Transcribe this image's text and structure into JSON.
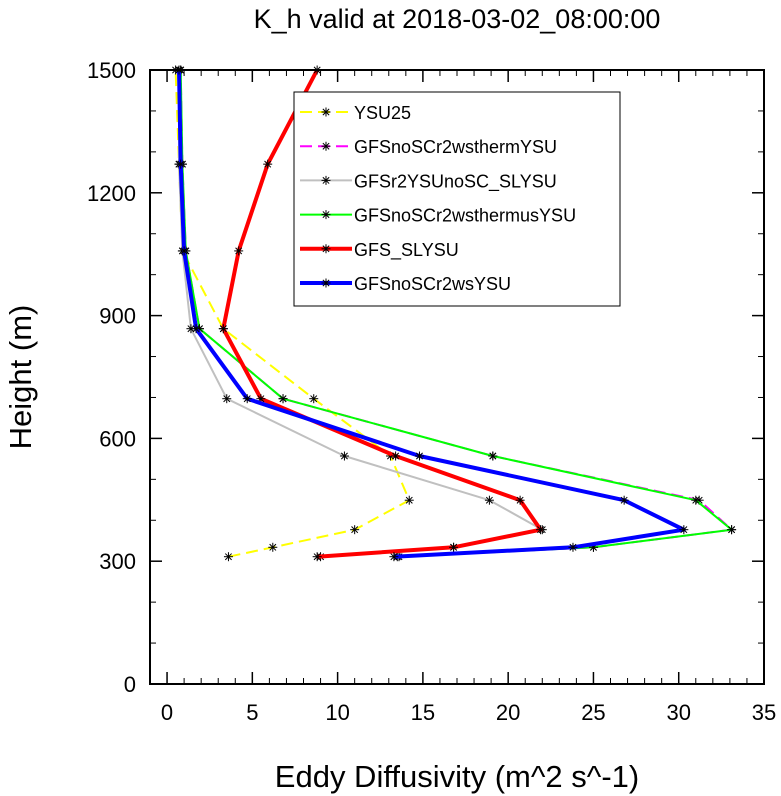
{
  "chart_data": {
    "type": "line",
    "title": "K_h valid at 2018-03-02_08:00:00",
    "xlabel": "Eddy Diffusivity (m^2 s^-1)",
    "ylabel": "Height (m)",
    "xlim": [
      -1,
      35
    ],
    "ylim": [
      0,
      1500
    ],
    "xticks": [
      0,
      5,
      10,
      15,
      20,
      25,
      30,
      35
    ],
    "yticks": [
      0,
      300,
      600,
      900,
      1200,
      1500
    ],
    "xtick_labels": [
      "0",
      "5",
      "10",
      "15",
      "20",
      "25",
      "30",
      "35"
    ],
    "ytick_labels": [
      "0",
      "300",
      "600",
      "900",
      "1200",
      "1500"
    ],
    "grid": false,
    "legend_position": "upper-right",
    "series": [
      {
        "name": "YSU25",
        "color": "#ffff00",
        "dash": "dashed",
        "width": 2,
        "markers": true,
        "points": [
          [
            3.6,
            311
          ],
          [
            6.2,
            334
          ],
          [
            11.0,
            377
          ],
          [
            14.2,
            449
          ],
          [
            13.1,
            557
          ],
          [
            8.6,
            697
          ],
          [
            3.3,
            868
          ],
          [
            0.9,
            1058
          ],
          [
            0.7,
            1270
          ],
          [
            0.5,
            1500
          ]
        ]
      },
      {
        "name": "GFSnoSCr2wsthermYSU",
        "color": "#ff00ff",
        "dash": "dashed",
        "width": 2,
        "markers": true,
        "points": [
          [
            13.5,
            311
          ],
          [
            25.0,
            334
          ],
          [
            33.1,
            377
          ],
          [
            31.2,
            449
          ],
          [
            19.1,
            557
          ],
          [
            6.8,
            697
          ],
          [
            1.9,
            868
          ],
          [
            1.1,
            1058
          ],
          [
            0.9,
            1270
          ],
          [
            0.8,
            1500
          ]
        ]
      },
      {
        "name": "GFSr2YSUnoSC_SLYSU",
        "color": "#c0c0c0",
        "dash": "solid",
        "width": 2,
        "markers": true,
        "points": [
          [
            9.0,
            311
          ],
          [
            16.8,
            334
          ],
          [
            22.0,
            377
          ],
          [
            18.9,
            449
          ],
          [
            10.4,
            557
          ],
          [
            3.5,
            697
          ],
          [
            1.4,
            868
          ],
          [
            0.9,
            1058
          ],
          [
            0.7,
            1270
          ],
          [
            0.7,
            1500
          ]
        ]
      },
      {
        "name": "GFSnoSCr2wsthermusYSU",
        "color": "#00ff00",
        "dash": "solid",
        "width": 2,
        "markers": true,
        "points": [
          [
            13.6,
            311
          ],
          [
            25.0,
            334
          ],
          [
            33.1,
            377
          ],
          [
            31.0,
            449
          ],
          [
            19.1,
            557
          ],
          [
            6.8,
            697
          ],
          [
            1.9,
            868
          ],
          [
            1.1,
            1058
          ],
          [
            0.9,
            1270
          ],
          [
            0.8,
            1500
          ]
        ]
      },
      {
        "name": "GFS_SLYSU",
        "color": "#ff0000",
        "dash": "solid",
        "width": 4,
        "markers": true,
        "points": [
          [
            8.8,
            311
          ],
          [
            16.8,
            334
          ],
          [
            21.9,
            377
          ],
          [
            20.7,
            449
          ],
          [
            13.4,
            557
          ],
          [
            5.5,
            697
          ],
          [
            3.3,
            868
          ],
          [
            4.2,
            1058
          ],
          [
            5.9,
            1270
          ],
          [
            8.8,
            1500
          ]
        ]
      },
      {
        "name": "GFSnoSCr2wsYSU",
        "color": "#0000ff",
        "dash": "solid",
        "width": 4,
        "markers": true,
        "points": [
          [
            13.3,
            311
          ],
          [
            23.8,
            334
          ],
          [
            30.3,
            377
          ],
          [
            26.8,
            449
          ],
          [
            14.8,
            557
          ],
          [
            4.7,
            697
          ],
          [
            1.7,
            868
          ],
          [
            1.0,
            1058
          ],
          [
            0.8,
            1270
          ],
          [
            0.7,
            1500
          ]
        ]
      }
    ]
  }
}
